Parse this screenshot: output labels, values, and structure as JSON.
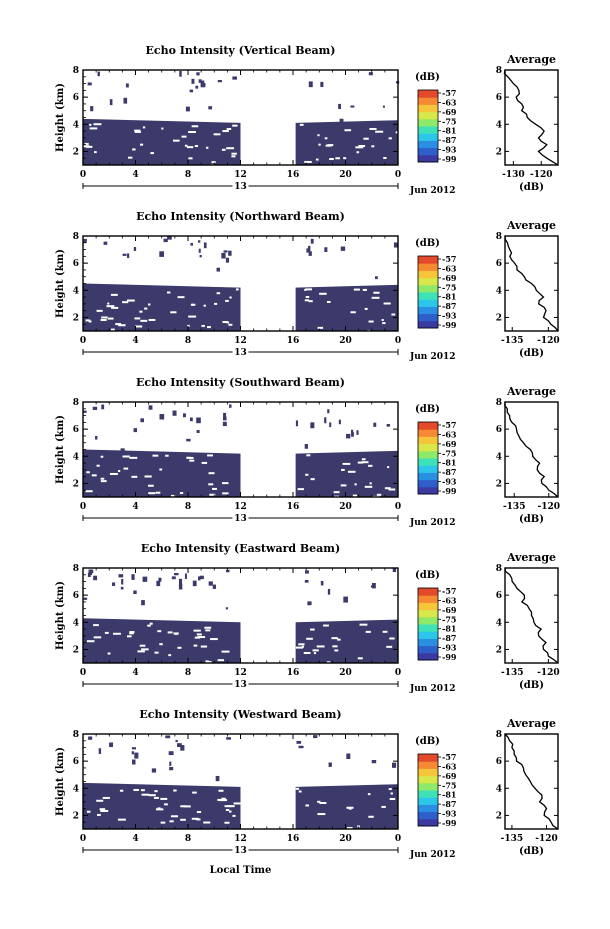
{
  "colors": {
    "echo_fill": "#3b3a6b",
    "colorbar": [
      "#3b3aa0",
      "#2e5ec9",
      "#2a8fe0",
      "#2cc7e8",
      "#3fe2b8",
      "#8ee86a",
      "#d8e84a",
      "#f6c53a",
      "#f58a33",
      "#e34a2c"
    ]
  },
  "chart_data": [
    {
      "type": "heatmap",
      "title": "Echo Intensity (Vertical Beam)",
      "ylabel": "Height (km)",
      "xlabel": "",
      "x_ticks": [
        "0",
        "4",
        "8",
        "12",
        "16",
        "20",
        "0"
      ],
      "y_ticks": [
        "8",
        "6",
        "4",
        "2"
      ],
      "date_label": "13",
      "month_label": "Jun 2012",
      "xlim": [
        0,
        24
      ],
      "ylim": [
        1,
        8
      ],
      "echo_top_km": 4.4,
      "gap_hours": [
        12,
        16.2
      ],
      "colorbar": {
        "unit": "(dB)",
        "labels": [
          "-57",
          "-63",
          "-69",
          "-75",
          "-81",
          "-87",
          "-93",
          "-99"
        ]
      },
      "profile": {
        "type": "line",
        "title": "Average",
        "xlabel": "(dB)",
        "x_ticks": [
          "-130",
          "-120"
        ],
        "y_ticks": [
          "8",
          "6",
          "4",
          "2"
        ],
        "xlim": [
          -133,
          -114
        ],
        "ylim": [
          1,
          8
        ],
        "height_km": [
          1.0,
          1.5,
          2.0,
          2.5,
          3.0,
          3.5,
          4.0,
          4.5,
          5.0,
          5.5,
          6.0,
          6.5,
          7.0,
          7.5,
          8.0
        ],
        "values_db": [
          -114,
          -118,
          -121,
          -118,
          -121,
          -119,
          -122,
          -125,
          -127,
          -127,
          -129,
          -128,
          -130,
          -132,
          -133
        ]
      }
    },
    {
      "type": "heatmap",
      "title": "Echo Intensity (Northward Beam)",
      "ylabel": "Height (km)",
      "xlabel": "",
      "x_ticks": [
        "0",
        "4",
        "8",
        "12",
        "16",
        "20",
        "0"
      ],
      "y_ticks": [
        "8",
        "6",
        "4",
        "2"
      ],
      "date_label": "13",
      "month_label": "Jun 2012",
      "xlim": [
        0,
        24
      ],
      "ylim": [
        1,
        8
      ],
      "echo_top_km": 4.5,
      "gap_hours": [
        12,
        16.2
      ],
      "colorbar": {
        "unit": "(dB)",
        "labels": [
          "-57",
          "-63",
          "-69",
          "-75",
          "-81",
          "-87",
          "-93",
          "-99"
        ]
      },
      "profile": {
        "type": "line",
        "title": "Average",
        "xlabel": "(dB)",
        "x_ticks": [
          "-135",
          "-120"
        ],
        "y_ticks": [
          "8",
          "6",
          "4",
          "2"
        ],
        "xlim": [
          -138,
          -116
        ],
        "ylim": [
          1,
          8
        ],
        "height_km": [
          1.0,
          1.5,
          2.0,
          2.5,
          3.0,
          3.5,
          4.0,
          4.5,
          5.0,
          5.5,
          6.0,
          6.5,
          7.0,
          7.5,
          8.0
        ],
        "values_db": [
          -116,
          -119,
          -122,
          -121,
          -124,
          -122,
          -125,
          -127,
          -130,
          -133,
          -134,
          -136,
          -136,
          -137,
          -138
        ]
      }
    },
    {
      "type": "heatmap",
      "title": "Echo Intensity (Southward Beam)",
      "ylabel": "Height (km)",
      "xlabel": "",
      "x_ticks": [
        "0",
        "4",
        "8",
        "12",
        "16",
        "20",
        "0"
      ],
      "y_ticks": [
        "8",
        "6",
        "4",
        "2"
      ],
      "date_label": "13",
      "month_label": "Jun 2012",
      "xlim": [
        0,
        24
      ],
      "ylim": [
        1,
        8
      ],
      "echo_top_km": 4.5,
      "gap_hours": [
        12,
        16.2
      ],
      "colorbar": {
        "unit": "(dB)",
        "labels": [
          "-57",
          "-63",
          "-69",
          "-75",
          "-81",
          "-87",
          "-93",
          "-99"
        ]
      },
      "profile": {
        "type": "line",
        "title": "Average",
        "xlabel": "(dB)",
        "x_ticks": [
          "-135",
          "-120"
        ],
        "y_ticks": [
          "8",
          "6",
          "4",
          "2"
        ],
        "xlim": [
          -139,
          -116
        ],
        "ylim": [
          1,
          8
        ],
        "height_km": [
          1.0,
          1.5,
          2.0,
          2.5,
          3.0,
          3.5,
          4.0,
          4.5,
          5.0,
          5.5,
          6.0,
          6.5,
          7.0,
          7.5,
          8.0
        ],
        "values_db": [
          -116,
          -120,
          -123,
          -122,
          -125,
          -124,
          -127,
          -128,
          -131,
          -133,
          -134,
          -136,
          -137,
          -138,
          -139
        ]
      }
    },
    {
      "type": "heatmap",
      "title": "Echo Intensity (Eastward Beam)",
      "ylabel": "Height (km)",
      "xlabel": "",
      "x_ticks": [
        "0",
        "4",
        "8",
        "12",
        "16",
        "20",
        "0"
      ],
      "y_ticks": [
        "8",
        "6",
        "4",
        "2"
      ],
      "date_label": "13",
      "month_label": "Jun 2012",
      "xlim": [
        0,
        24
      ],
      "ylim": [
        1,
        8
      ],
      "echo_top_km": 4.3,
      "gap_hours": [
        12,
        16.2
      ],
      "colorbar": {
        "unit": "(dB)",
        "labels": [
          "-57",
          "-63",
          "-69",
          "-75",
          "-81",
          "-87",
          "-93",
          "-99"
        ]
      },
      "profile": {
        "type": "line",
        "title": "Average",
        "xlabel": "(dB)",
        "x_ticks": [
          "-135",
          "-120"
        ],
        "y_ticks": [
          "8",
          "6",
          "4",
          "2"
        ],
        "xlim": [
          -138,
          -116
        ],
        "ylim": [
          1,
          8
        ],
        "height_km": [
          1.0,
          1.5,
          2.0,
          2.5,
          3.0,
          3.5,
          4.0,
          4.5,
          5.0,
          5.5,
          6.0,
          6.5,
          7.0,
          7.5,
          8.0
        ],
        "values_db": [
          -116,
          -120,
          -122,
          -121,
          -124,
          -123,
          -126,
          -127,
          -128,
          -131,
          -130,
          -133,
          -135,
          -136,
          -138
        ]
      }
    },
    {
      "type": "heatmap",
      "title": "Echo Intensity (Westward Beam)",
      "ylabel": "Height (km)",
      "xlabel": "Local Time",
      "x_ticks": [
        "0",
        "4",
        "8",
        "12",
        "16",
        "20",
        "0"
      ],
      "y_ticks": [
        "8",
        "6",
        "4",
        "2"
      ],
      "date_label": "13",
      "month_label": "Jun 2012",
      "xlim": [
        0,
        24
      ],
      "ylim": [
        1,
        8
      ],
      "echo_top_km": 4.4,
      "gap_hours": [
        12,
        16.2
      ],
      "colorbar": {
        "unit": "(dB)",
        "labels": [
          "-57",
          "-63",
          "-69",
          "-75",
          "-81",
          "-87",
          "-93",
          "-99"
        ]
      },
      "profile": {
        "type": "line",
        "title": "Average",
        "xlabel": "(dB)",
        "x_ticks": [
          "-135",
          "-120"
        ],
        "y_ticks": [
          "8",
          "6",
          "4",
          "2"
        ],
        "xlim": [
          -138,
          -115
        ],
        "ylim": [
          1,
          8
        ],
        "height_km": [
          1.0,
          1.5,
          2.0,
          2.5,
          3.0,
          3.5,
          4.0,
          4.5,
          5.0,
          5.5,
          6.0,
          6.5,
          7.0,
          7.5,
          8.0
        ],
        "values_db": [
          -115,
          -118,
          -121,
          -120,
          -123,
          -122,
          -125,
          -127,
          -129,
          -130,
          -133,
          -134,
          -135,
          -136,
          -138
        ]
      }
    }
  ]
}
